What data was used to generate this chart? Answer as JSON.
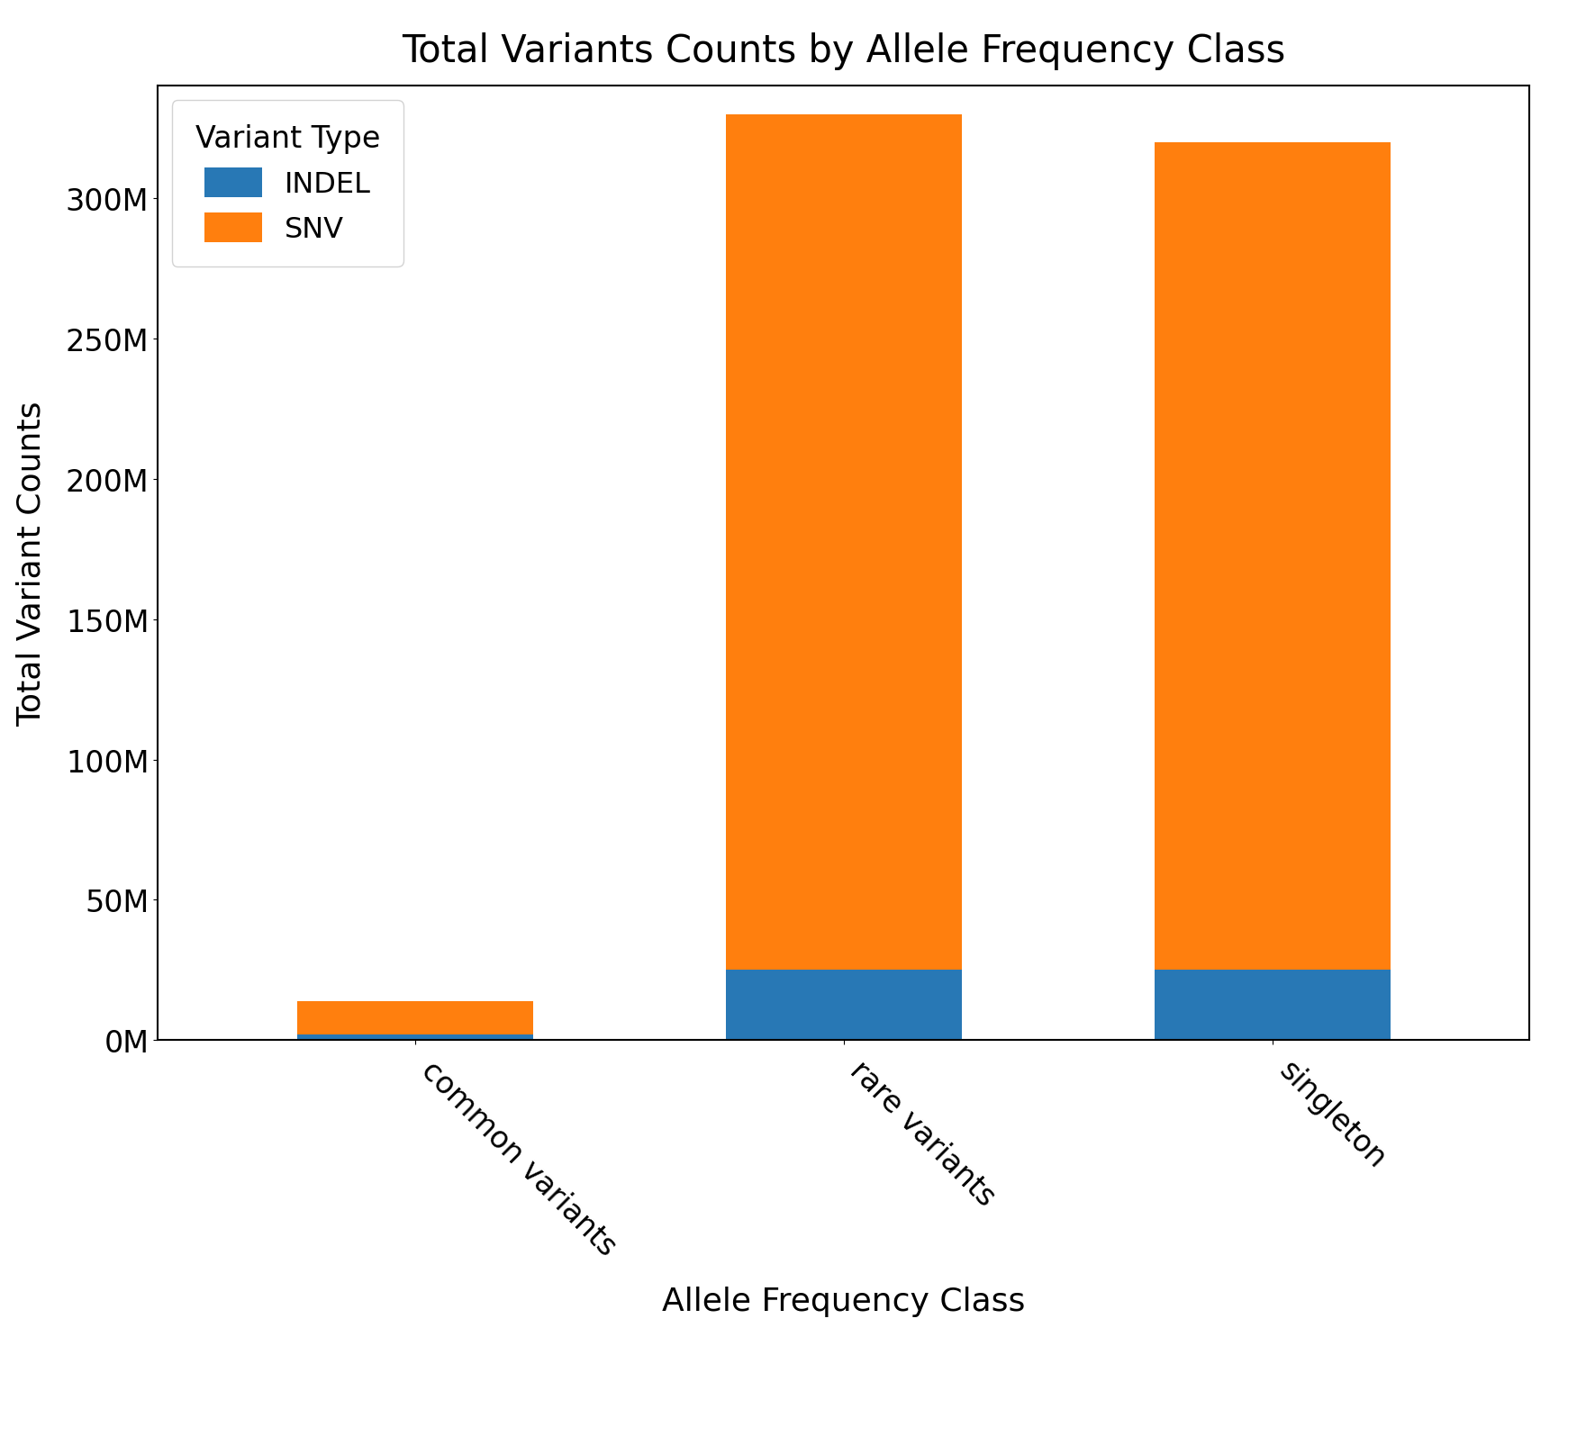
{
  "categories": [
    "common variants",
    "rare variants",
    "singleton"
  ],
  "indel_values": [
    2000000,
    25000000,
    25000000
  ],
  "snv_values": [
    12000000,
    305000000,
    295000000
  ],
  "indel_color": "#2878b5",
  "snv_color": "#ff7f0e",
  "title": "Total Variants Counts by Allele Frequency Class",
  "xlabel": "Allele Frequency Class",
  "ylabel": "Total Variant Counts",
  "legend_title": "Variant Type",
  "legend_labels": [
    "INDEL",
    "SNV"
  ],
  "ylim": [
    0,
    340000000
  ],
  "title_fontsize": 30,
  "label_fontsize": 26,
  "tick_fontsize": 24,
  "legend_fontsize": 23,
  "bar_width": 0.55,
  "background_color": "#ffffff"
}
